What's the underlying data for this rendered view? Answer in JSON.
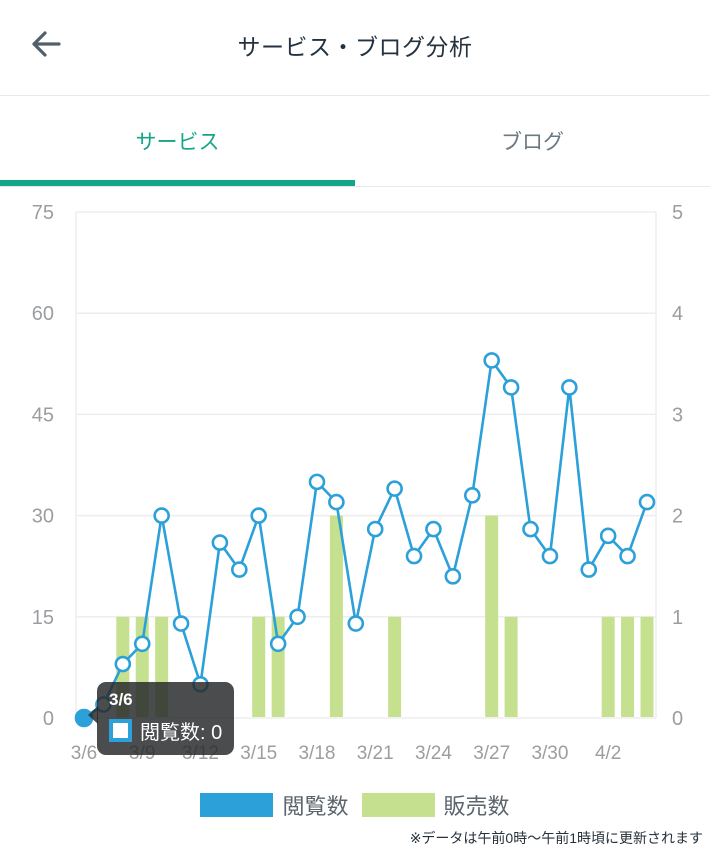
{
  "header": {
    "title": "サービス・ブログ分析",
    "back_icon": "arrow-left"
  },
  "tabs": [
    {
      "label": "サービス",
      "active": true
    },
    {
      "label": "ブログ",
      "active": false
    }
  ],
  "colors": {
    "accent_teal": "#15A689",
    "line_blue": "#2BA0D9",
    "bar_green": "#C5E08E",
    "grid": "#EDEDED",
    "axis_text": "#9B9EA1"
  },
  "chart_data": {
    "type": "line",
    "x": [
      "3/6",
      "3/7",
      "3/8",
      "3/9",
      "3/10",
      "3/11",
      "3/12",
      "3/13",
      "3/14",
      "3/15",
      "3/16",
      "3/17",
      "3/18",
      "3/19",
      "3/20",
      "3/21",
      "3/22",
      "3/23",
      "3/24",
      "3/25",
      "3/26",
      "3/27",
      "3/28",
      "3/29",
      "3/30",
      "3/31",
      "4/1",
      "4/2",
      "4/3",
      "4/4"
    ],
    "x_tick_labels": [
      "3/6",
      "3/9",
      "3/12",
      "3/15",
      "3/18",
      "3/21",
      "3/24",
      "3/27",
      "3/30",
      "4/2"
    ],
    "x_tick_every": 3,
    "series": [
      {
        "name": "閲覧数",
        "type": "line",
        "axis": "left",
        "color": "#2BA0D9",
        "values": [
          0,
          2,
          8,
          11,
          30,
          14,
          5,
          26,
          22,
          30,
          11,
          15,
          35,
          32,
          14,
          28,
          34,
          24,
          28,
          21,
          33,
          53,
          49,
          28,
          24,
          49,
          22,
          27,
          24,
          32
        ]
      },
      {
        "name": "販売数",
        "type": "bar",
        "axis": "right",
        "color": "#C5E08E",
        "values": [
          0,
          0,
          1,
          1,
          1,
          0,
          0,
          0,
          0,
          1,
          1,
          0,
          0,
          2,
          0,
          0,
          1,
          0,
          0,
          0,
          0,
          2,
          1,
          0,
          0,
          0,
          0,
          1,
          1,
          1
        ]
      }
    ],
    "left_axis": {
      "min": 0,
      "max": 75,
      "ticks": [
        0,
        15,
        30,
        45,
        60,
        75
      ]
    },
    "right_axis": {
      "min": 0,
      "max": 5,
      "ticks": [
        0,
        1,
        2,
        3,
        4,
        5
      ]
    },
    "grid": true,
    "legend_position": "bottom",
    "selected_point": {
      "x": "3/6",
      "series": "閲覧数",
      "value": 0
    }
  },
  "tooltip": {
    "date": "3/6",
    "label": "閲覧数: 0"
  },
  "legend": [
    {
      "label": "閲覧数",
      "color": "#2BA0D9"
    },
    {
      "label": "販売数",
      "color": "#C5E08E"
    }
  ],
  "footer_note": "※データは午前0時～午前1時頃に更新されます"
}
